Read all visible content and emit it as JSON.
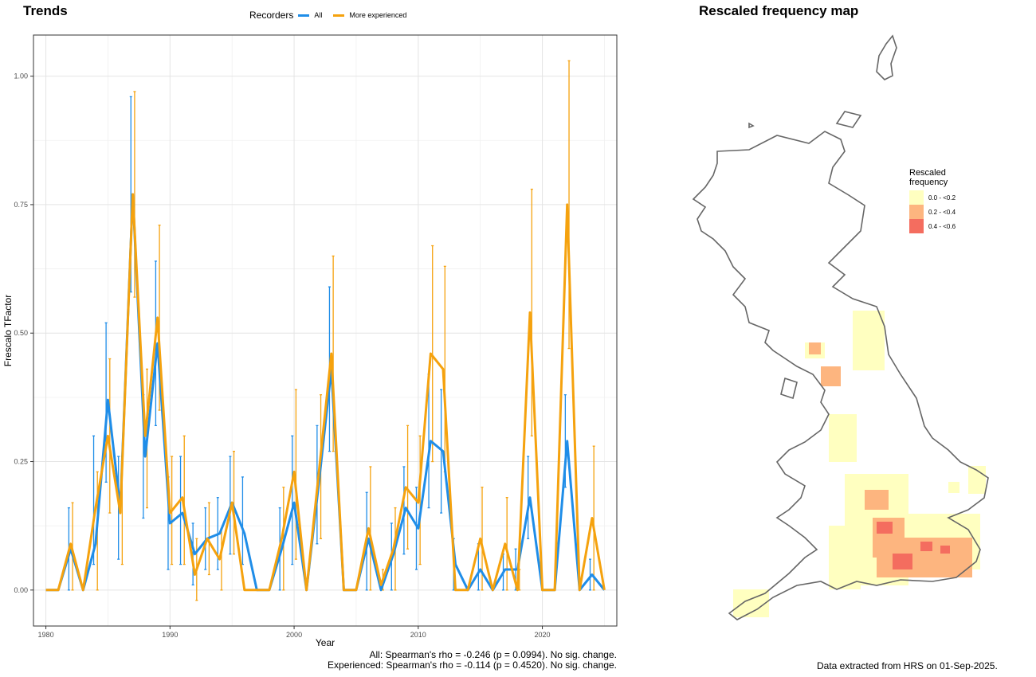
{
  "trends": {
    "title": "Trends",
    "legend_title": "Recorders",
    "stats_all": "All: Spearman's rho = -0.246 (p = 0.0994). No sig. change.",
    "stats_exp": "Experienced: Spearman's rho = -0.114 (p = 0.4520). No sig. change."
  },
  "chart_data": {
    "type": "line",
    "xlabel": "Year",
    "ylabel": "Frescalo TFactor",
    "xlim": [
      1979,
      2026
    ],
    "ylim": [
      -0.07,
      1.08
    ],
    "x_ticks": [
      1980,
      1990,
      2000,
      2010,
      2020
    ],
    "y_ticks": [
      0.0,
      0.25,
      0.5,
      0.75,
      1.0
    ],
    "y_tick_labels": [
      "0.00",
      "0.25",
      "0.50",
      "0.75",
      "1.00"
    ],
    "grid": true,
    "legend_placement": "top",
    "series": [
      {
        "name": "All",
        "color": "#1f8de8",
        "points": [
          [
            1980,
            0,
            0,
            0
          ],
          [
            1981,
            0,
            0,
            0
          ],
          [
            1982,
            0.08,
            0,
            0.16
          ],
          [
            1983,
            0,
            0,
            0
          ],
          [
            1984,
            0.09,
            0.05,
            0.3
          ],
          [
            1985,
            0.37,
            0.21,
            0.52
          ],
          [
            1986,
            0.16,
            0.06,
            0.26
          ],
          [
            1987,
            0.77,
            0.58,
            0.96
          ],
          [
            1988,
            0.26,
            0.14,
            0.38
          ],
          [
            1989,
            0.48,
            0.32,
            0.64
          ],
          [
            1990,
            0.13,
            0.04,
            0.22
          ],
          [
            1991,
            0.15,
            0.05,
            0.26
          ],
          [
            1992,
            0.07,
            0.01,
            0.13
          ],
          [
            1993,
            0.1,
            0.04,
            0.16
          ],
          [
            1994,
            0.11,
            0.04,
            0.18
          ],
          [
            1995,
            0.17,
            0.07,
            0.26
          ],
          [
            1996,
            0.11,
            0.05,
            0.22
          ],
          [
            1997,
            0,
            0,
            0
          ],
          [
            1998,
            0,
            0,
            0
          ],
          [
            1999,
            0.08,
            0,
            0.16
          ],
          [
            2000,
            0.17,
            0.05,
            0.3
          ],
          [
            2001,
            0,
            0,
            0
          ],
          [
            2002,
            0.21,
            0.09,
            0.32
          ],
          [
            2003,
            0.43,
            0.27,
            0.59
          ],
          [
            2004,
            0,
            0,
            0
          ],
          [
            2005,
            0,
            0,
            0
          ],
          [
            2006,
            0.1,
            0,
            0.19
          ],
          [
            2007,
            0,
            0,
            0
          ],
          [
            2008,
            0.07,
            0,
            0.13
          ],
          [
            2009,
            0.16,
            0.07,
            0.24
          ],
          [
            2010,
            0.12,
            0.04,
            0.2
          ],
          [
            2011,
            0.29,
            0.16,
            0.42
          ],
          [
            2012,
            0.27,
            0.15,
            0.39
          ],
          [
            2013,
            0.05,
            0,
            0.1
          ],
          [
            2014,
            0,
            0,
            0
          ],
          [
            2015,
            0.04,
            0,
            0.09
          ],
          [
            2016,
            0,
            0,
            0
          ],
          [
            2017,
            0.04,
            0,
            0.07
          ],
          [
            2018,
            0.04,
            0,
            0.08
          ],
          [
            2019,
            0.18,
            0.1,
            0.26
          ],
          [
            2020,
            0,
            0,
            0
          ],
          [
            2021,
            0,
            0,
            0
          ],
          [
            2022,
            0.29,
            0.2,
            0.38
          ],
          [
            2023,
            0,
            0,
            0
          ],
          [
            2024,
            0.03,
            0,
            0.06
          ],
          [
            2025,
            0,
            0,
            0
          ]
        ]
      },
      {
        "name": "More experienced",
        "color": "#f5a20e",
        "points": [
          [
            1980,
            0,
            0,
            0
          ],
          [
            1981,
            0,
            0,
            0
          ],
          [
            1982,
            0.09,
            0,
            0.17
          ],
          [
            1983,
            0,
            0,
            0
          ],
          [
            1984,
            0.16,
            0,
            0.23
          ],
          [
            1985,
            0.3,
            0.15,
            0.45
          ],
          [
            1986,
            0.15,
            0.05,
            0.26
          ],
          [
            1987,
            0.77,
            0.57,
            0.97
          ],
          [
            1988,
            0.3,
            0.16,
            0.43
          ],
          [
            1989,
            0.53,
            0.35,
            0.71
          ],
          [
            1990,
            0.15,
            0.05,
            0.26
          ],
          [
            1991,
            0.18,
            0.05,
            0.3
          ],
          [
            1992,
            0.03,
            -0.02,
            0.1
          ],
          [
            1993,
            0.1,
            0.03,
            0.17
          ],
          [
            1994,
            0.06,
            0,
            0.12
          ],
          [
            1995,
            0.17,
            0.07,
            0.27
          ],
          [
            1996,
            0,
            0,
            0
          ],
          [
            1997,
            0,
            0,
            0
          ],
          [
            1998,
            0,
            0,
            0
          ],
          [
            1999,
            0.1,
            0,
            0.2
          ],
          [
            2000,
            0.23,
            0.06,
            0.39
          ],
          [
            2001,
            0,
            0,
            0
          ],
          [
            2002,
            0.23,
            0.1,
            0.38
          ],
          [
            2003,
            0.46,
            0.27,
            0.65
          ],
          [
            2004,
            0,
            0,
            0
          ],
          [
            2005,
            0,
            0,
            0
          ],
          [
            2006,
            0.12,
            0,
            0.24
          ],
          [
            2007,
            0.01,
            0,
            0.04
          ],
          [
            2008,
            0.08,
            0,
            0.16
          ],
          [
            2009,
            0.2,
            0.08,
            0.32
          ],
          [
            2010,
            0.17,
            0.05,
            0.3
          ],
          [
            2011,
            0.46,
            0.25,
            0.67
          ],
          [
            2012,
            0.43,
            0.23,
            0.63
          ],
          [
            2013,
            0,
            0,
            0
          ],
          [
            2014,
            0,
            0,
            0
          ],
          [
            2015,
            0.1,
            0,
            0.2
          ],
          [
            2016,
            0,
            0,
            0
          ],
          [
            2017,
            0.09,
            0,
            0.18
          ],
          [
            2018,
            0,
            0,
            0.04
          ],
          [
            2019,
            0.54,
            0.3,
            0.78
          ],
          [
            2020,
            0,
            0,
            0
          ],
          [
            2021,
            0,
            0,
            0
          ],
          [
            2022,
            0.75,
            0.47,
            1.03
          ],
          [
            2023,
            0,
            0,
            0
          ],
          [
            2024,
            0.14,
            0,
            0.28
          ],
          [
            2025,
            0,
            0,
            0
          ]
        ]
      }
    ]
  },
  "map": {
    "title": "Rescaled frequency map",
    "legend_title_1": "Rescaled",
    "legend_title_2": "frequency",
    "legend": [
      {
        "label": "0.0 - <0.2",
        "color": "#ffffc0"
      },
      {
        "label": "0.2 - <0.4",
        "color": "#fdb57f"
      },
      {
        "label": "0.4 - <0.6",
        "color": "#f46d5f"
      }
    ],
    "outline_color": "#666666"
  },
  "footer": "Data extracted from HRS on 01-Sep-2025."
}
